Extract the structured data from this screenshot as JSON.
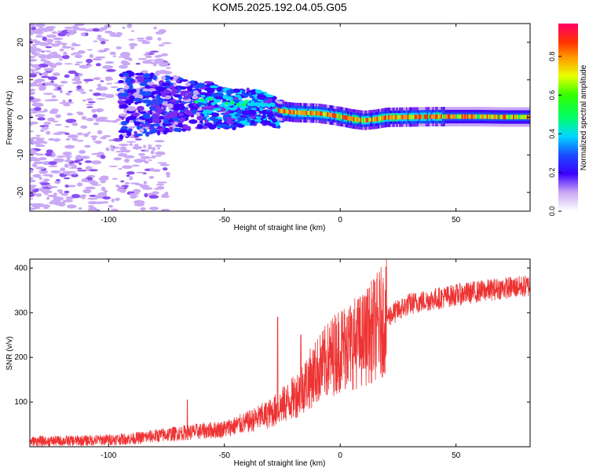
{
  "title": "KOM5.2025.192.04.05.G05",
  "charts": [
    {
      "type": "heatmap",
      "xlabel": "Height of straight line (km)",
      "ylabel": "Frequency (Hz)",
      "xlim": [
        -134,
        82
      ],
      "ylim": [
        -25,
        25
      ],
      "xticks": [
        -100,
        -50,
        0,
        50
      ],
      "yticks": [
        -20,
        -10,
        0,
        10,
        20
      ],
      "colorbar_label": "Normalized spectral amplitude",
      "colorbar_ticks": [
        0.0,
        0.2,
        0.4,
        0.6,
        0.8
      ],
      "colorbar_range": [
        0,
        0.97
      ],
      "ridge": [
        [
          -60,
          4.5
        ],
        [
          -55,
          4.2
        ],
        [
          -50,
          3.5
        ],
        [
          -45,
          3.2
        ],
        [
          -40,
          3.8
        ],
        [
          -35,
          3.5
        ],
        [
          -30,
          3.0
        ],
        [
          -27,
          1.8
        ],
        [
          -20,
          1.3
        ],
        [
          -10,
          1.1
        ],
        [
          -5,
          0.7
        ],
        [
          0,
          0.2
        ],
        [
          5,
          -0.4
        ],
        [
          10,
          -0.8
        ],
        [
          15,
          -0.5
        ],
        [
          20,
          0.0
        ],
        [
          30,
          0.1
        ],
        [
          40,
          0.2
        ],
        [
          50,
          0.2
        ],
        [
          60,
          0.2
        ],
        [
          70,
          0.1
        ],
        [
          82,
          0.1
        ]
      ]
    },
    {
      "type": "line",
      "xlabel": "Height of straight line (km)",
      "ylabel": "SNR (v/v)",
      "xlim": [
        -134,
        82
      ],
      "ylim": [
        0,
        420
      ],
      "xticks": [
        -100,
        -50,
        0,
        50
      ],
      "yticks": [
        100,
        200,
        300,
        400
      ],
      "series_color": "#ee3333",
      "trend": [
        [
          -134,
          12
        ],
        [
          -110,
          14
        ],
        [
          -90,
          18
        ],
        [
          -70,
          30
        ],
        [
          -50,
          40
        ],
        [
          -40,
          55
        ],
        [
          -30,
          75
        ],
        [
          -20,
          110
        ],
        [
          -10,
          170
        ],
        [
          0,
          220
        ],
        [
          10,
          240
        ],
        [
          20,
          290
        ],
        [
          30,
          320
        ],
        [
          50,
          340
        ],
        [
          70,
          355
        ],
        [
          82,
          360
        ]
      ],
      "spikes": [
        [
          -66,
          105
        ],
        [
          -27,
          290
        ],
        [
          -17,
          250
        ],
        [
          3,
          290
        ],
        [
          8,
          330
        ],
        [
          12,
          338
        ]
      ]
    }
  ]
}
